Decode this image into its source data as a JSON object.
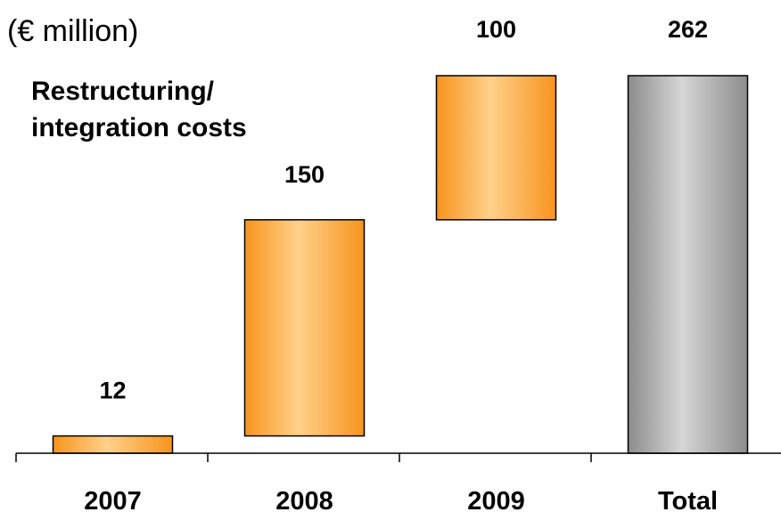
{
  "chart_data": {
    "type": "bar",
    "subtype": "waterfall",
    "unit_label": "(€ million)",
    "subtitle_lines": [
      "Restructuring/",
      "integration costs"
    ],
    "categories": [
      "2007",
      "2008",
      "2009",
      "Total"
    ],
    "values": [
      12,
      150,
      100,
      262
    ],
    "data_labels": [
      "12",
      "150",
      "100",
      "262"
    ],
    "total_index": 3,
    "ylim": [
      0,
      262
    ],
    "grid": false,
    "legend": "none",
    "colors": {
      "increment_edge": "#f7941d",
      "increment_center": "#ffd08a",
      "total_edge": "#8c8c8c",
      "total_center": "#d6d6d6",
      "bar_stroke": "#000000"
    }
  }
}
